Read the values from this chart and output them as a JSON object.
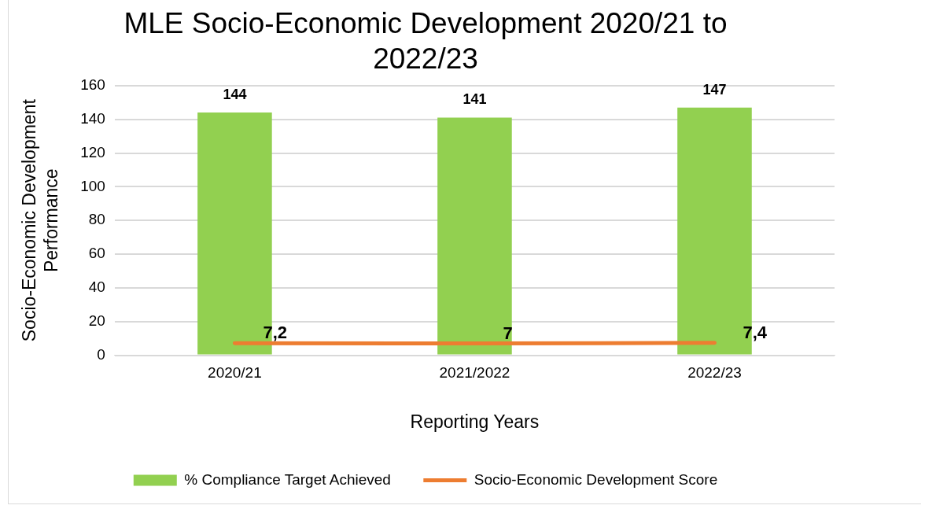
{
  "chart_data": {
    "type": "bar",
    "title": "MLE Socio-Economic Development 2020/21 to 2022/23",
    "xlabel": "Reporting Years",
    "ylabel": "Socio-Economic Development Performance",
    "categories": [
      "2020/21",
      "2021/2022",
      "2022/23"
    ],
    "series": [
      {
        "name": "% Compliance Target Achieved",
        "color": "#92d050",
        "values": [
          144,
          141,
          147
        ],
        "value_labels": [
          "144",
          "141",
          "147"
        ]
      },
      {
        "name": "Socio-Economic Development Score",
        "type": "line",
        "color": "#ed7d31",
        "values": [
          7.2,
          7,
          7.4
        ],
        "value_labels": [
          "7,2",
          "7",
          "7,4"
        ]
      }
    ],
    "ylim": [
      0,
      160
    ],
    "yticks": [
      0,
      20,
      40,
      60,
      80,
      100,
      120,
      140,
      160
    ],
    "grid": "y",
    "legend": "bottom",
    "marker": "none",
    "line_style": "solid"
  }
}
